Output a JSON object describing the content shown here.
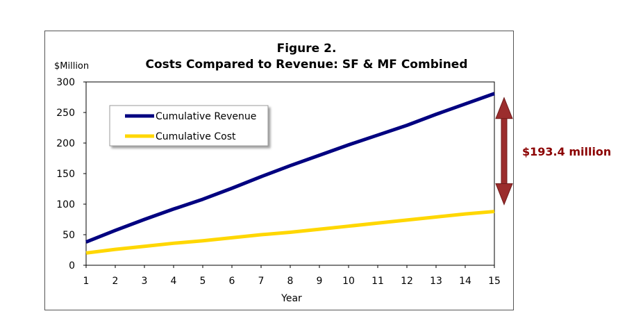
{
  "chart_data": {
    "type": "line",
    "title_line1": "Figure 2.",
    "title_line2": "Costs Compared to Revenue: SF & MF Combined",
    "ylabel": "$Million",
    "xlabel": "Year",
    "x": [
      1,
      2,
      3,
      4,
      5,
      6,
      7,
      8,
      9,
      10,
      11,
      12,
      13,
      14,
      15
    ],
    "ylim": [
      0,
      300
    ],
    "yticks": [
      0,
      50,
      100,
      150,
      200,
      250,
      300
    ],
    "grid": false,
    "legend_position": "top-left",
    "series": [
      {
        "name": "Cumulative Revenue",
        "color": "#000080",
        "values": [
          38,
          57,
          75,
          92,
          108,
          126,
          145,
          163,
          180,
          197,
          213,
          229,
          247,
          264,
          281
        ]
      },
      {
        "name": "Cumulative Cost",
        "color": "#ffd700",
        "values": [
          20,
          26,
          31,
          36,
          40,
          45,
          50,
          54,
          59,
          64,
          69,
          74,
          79,
          84,
          88
        ]
      }
    ],
    "annotation": {
      "text": "$193.4 million",
      "color": "#8b0000"
    }
  }
}
